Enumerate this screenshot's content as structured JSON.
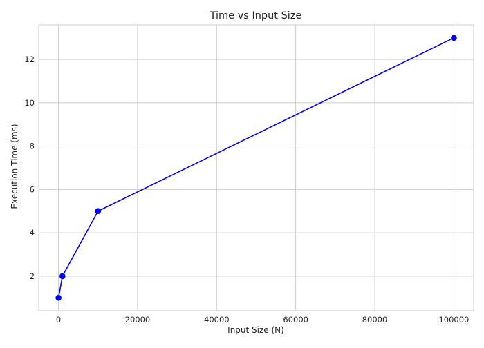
{
  "chart_data": {
    "type": "line",
    "title": "Time vs Input Size",
    "xlabel": "Input Size (N)",
    "ylabel": "Execution Time (ms)",
    "xlim": [
      -5000,
      105000
    ],
    "ylim": [
      0.4,
      13.6
    ],
    "xticks": [
      0,
      20000,
      40000,
      60000,
      80000,
      100000
    ],
    "yticks": [
      2,
      4,
      6,
      8,
      10,
      12
    ],
    "grid": true,
    "legend": "none",
    "series": [
      {
        "x": [
          10,
          1000,
          10000,
          100000
        ],
        "y": [
          1,
          2,
          5,
          13
        ],
        "color": "#0000ff",
        "marker": "circle"
      }
    ]
  }
}
